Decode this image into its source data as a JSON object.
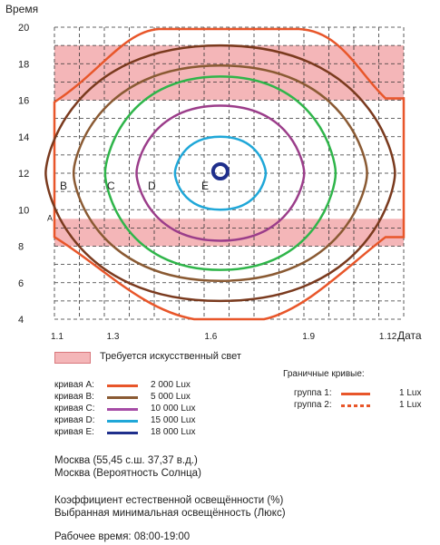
{
  "chart_data": {
    "type": "line",
    "ylabel": "Время",
    "xlabel": "Дата",
    "ylim": [
      4,
      20
    ],
    "yticks": [
      "4",
      "6",
      "8",
      "10",
      "12",
      "14",
      "16",
      "18",
      "20"
    ],
    "xticks": [
      "1.1",
      "1.3",
      "1.6",
      "1.9",
      "1.12"
    ],
    "grid": true,
    "center_point": {
      "label": "E",
      "x": 0.475,
      "y": 12.0
    },
    "curve_letters": [
      "A",
      "B",
      "C",
      "D",
      "E"
    ],
    "series": [
      {
        "name": "кривая A",
        "lux": "2 000 Lux",
        "color": "#7a3a1e",
        "center_y": 12.0,
        "half_width_x": 0.5,
        "half_height_y": 7.0
      },
      {
        "name": "кривая B",
        "lux": "5 000 Lux",
        "color": "#8a5a33",
        "center_y": 12.0,
        "half_width_x": 0.42,
        "half_height_y": 5.9
      },
      {
        "name": "кривая C",
        "lux": "10 000 Lux",
        "color": "#2fb54a",
        "center_y": 12.0,
        "half_width_x": 0.33,
        "half_height_y": 5.3
      },
      {
        "name": "кривая D",
        "lux": "15 000 Lux",
        "color": "#9b3d8a",
        "center_y": 12.0,
        "half_width_x": 0.24,
        "half_height_y": 3.7
      },
      {
        "name": "кривая E",
        "lux": "18 000 Lux",
        "color": "#1fa7d8",
        "center_y": 12.0,
        "half_width_x": 0.13,
        "half_height_y": 2.0
      }
    ],
    "artificial_light_bands": [
      {
        "y_from": 16.0,
        "y_to": 19.0
      },
      {
        "y_from": 8.0,
        "y_to": 9.5
      }
    ]
  },
  "legend": {
    "artificial_light": "Требуется искусственный свет",
    "curves": [
      {
        "label": "кривая A:",
        "value": "2 000 Lux",
        "color": "#e8562a"
      },
      {
        "label": "кривая B:",
        "value": "5 000 Lux",
        "color": "#8a5a33"
      },
      {
        "label": "кривая C:",
        "value": "10 000 Lux",
        "color": "#a64ca6"
      },
      {
        "label": "кривая D:",
        "value": "15 000 Lux",
        "color": "#1fa7d8"
      },
      {
        "label": "кривая E:",
        "value": "18 000 Lux",
        "color": "#1f2f8c"
      }
    ],
    "boundary_title": "Граничные кривые:",
    "boundary": [
      {
        "label": "группа 1:",
        "value": "1 Lux",
        "color": "#e8562a",
        "dashed": false
      },
      {
        "label": "группа 2:",
        "value": "1 Lux",
        "color": "#e8562a",
        "dashed": true
      }
    ]
  },
  "info": {
    "line1": "Москва (55,45 с.ш. 37,37 в.д.)",
    "line2": "Москва (Вероятность Солнца)",
    "line3": "Коэффициент естественной освещённости (%)",
    "line4": "Выбранная минимальная освещённость (Люкс)",
    "line5": "Рабочее время: 08:00-19:00"
  }
}
